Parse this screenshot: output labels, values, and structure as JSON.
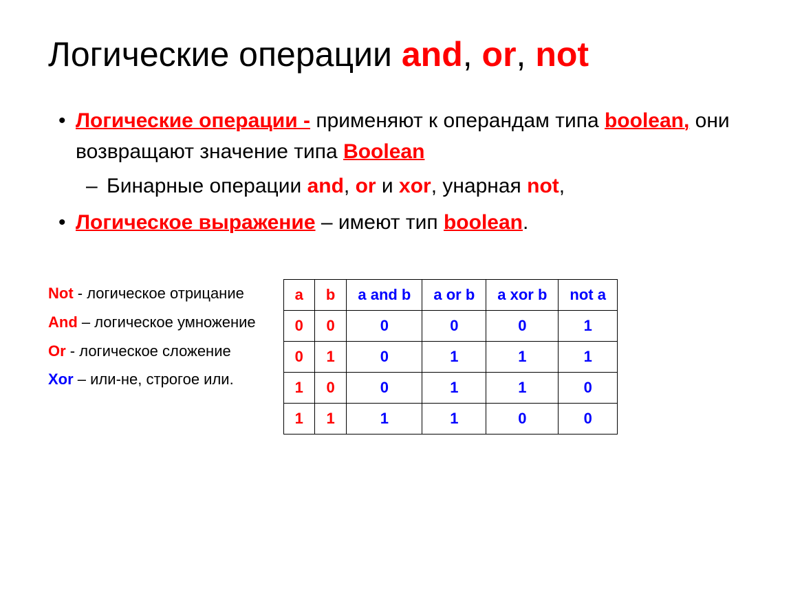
{
  "title": {
    "text_black": "Логические операции ",
    "highlights": [
      "and",
      "or",
      "not"
    ],
    "sep": ", "
  },
  "bullets": {
    "item1": {
      "term": "Логические операции -",
      "text1": " применяют к операндам типа ",
      "kw1": "boolean,",
      "text2": " они возвращают значение типа ",
      "kw2": "Boolean"
    },
    "sub1": {
      "text1": "Бинарные операции ",
      "kw1": "and",
      "sep1": ", ",
      "kw2": "or",
      "text2": " и ",
      "kw3": "xor",
      "text3": ", унарная  ",
      "kw4": "not",
      "text4": ","
    },
    "item2": {
      "term": "Логическое выражение",
      "text1": " – имеют тип ",
      "kw1": "boolean",
      "text2": "."
    }
  },
  "ops": {
    "not": {
      "kw": "Not",
      "text": " - логическое отрицание"
    },
    "and": {
      "kw": "And",
      "text": " – логическое умножение"
    },
    "or": {
      "kw": "Or",
      "text": " -   логическое сложение"
    },
    "xor": {
      "kw": "Xor",
      "text": " – или-не, строгое или."
    }
  },
  "table": {
    "type": "table",
    "columns": [
      "a",
      "b",
      "a and b",
      "a or b",
      "a xor b",
      "not a"
    ],
    "header_colors": [
      "#ff0000",
      "#ff0000",
      "#0000ff",
      "#0000ff",
      "#0000ff",
      "#0000ff"
    ],
    "rows": [
      {
        "a": "0",
        "b": "0",
        "and": "0",
        "or": "0",
        "xor": "0",
        "not": "1"
      },
      {
        "a": "0",
        "b": "1",
        "and": "0",
        "or": "1",
        "xor": "1",
        "not": "1"
      },
      {
        "a": "1",
        "b": "0",
        "and": "0",
        "or": "1",
        "xor": "1",
        "not": "0"
      },
      {
        "a": "1",
        "b": "1",
        "and": "1",
        "or": "1",
        "xor": "0",
        "not": "0"
      }
    ],
    "border_color": "#000000",
    "header_fontsize": 22,
    "cell_fontsize": 22,
    "red_columns": [
      0,
      1
    ],
    "cell_padding": "9px 16px"
  },
  "colors": {
    "red": "#ff0000",
    "blue": "#0000ff",
    "black": "#000000",
    "background": "#ffffff"
  },
  "typography": {
    "title_fontsize": 50,
    "body_fontsize": 30,
    "ops_fontsize": 22,
    "table_fontsize": 22,
    "font_family": "Arial"
  }
}
